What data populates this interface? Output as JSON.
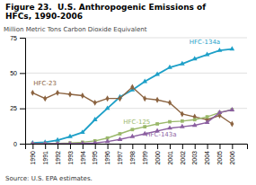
{
  "chart_data": {
    "type": "line",
    "title": [
      "Figure 23.  U.S. Anthropogenic Emissions of",
      "HFCs, 1990-2006"
    ],
    "y_label": "Million Metric Tons Carbon Dioxide Equivalent",
    "source": "Source: U.S. EPA estimates.",
    "x": [
      1990,
      1991,
      1992,
      1993,
      1994,
      1995,
      1996,
      1997,
      1998,
      1999,
      2000,
      2001,
      2002,
      2003,
      2004,
      2005,
      2006
    ],
    "series": [
      {
        "color": "#1ea0c8",
        "marker": "triangle",
        "values": [
          0.5,
          1.0,
          2.5,
          5.0,
          8.0,
          17.0,
          25.0,
          33.0,
          38.0,
          44.0,
          49.0,
          54.0,
          56.5,
          60.0,
          63.0,
          66.0,
          67.0
        ]
      },
      {
        "color": "#8B6340",
        "marker": "diamond",
        "values": [
          36.0,
          32.0,
          36.0,
          35.0,
          34.0,
          29.0,
          32.0,
          32.0,
          40.0,
          32.0,
          31.0,
          29.0,
          21.0,
          19.0,
          17.0,
          20.0,
          14.0
        ]
      },
      {
        "color": "#9ab86a",
        "marker": "square",
        "values": [
          0.0,
          0.0,
          0.2,
          0.5,
          1.0,
          2.0,
          4.0,
          7.0,
          10.0,
          12.0,
          14.0,
          15.5,
          16.0,
          17.0,
          19.0,
          22.0,
          24.0
        ]
      },
      {
        "color": "#8b5fa0",
        "marker": "triangle",
        "values": [
          0.0,
          0.0,
          0.0,
          0.0,
          0.2,
          0.5,
          1.5,
          3.0,
          5.0,
          7.0,
          9.0,
          11.0,
          12.0,
          13.0,
          15.0,
          22.0,
          24.0
        ]
      }
    ],
    "annotations": [
      {
        "text": "HFC-134a",
        "x": 2002.5,
        "y": 70.0,
        "color": "#1ea0c8"
      },
      {
        "text": "HFC-23",
        "x": 1990.0,
        "y": 40.5,
        "color": "#8B6340"
      },
      {
        "text": "HFC-125",
        "x": 1997.2,
        "y": 13.5,
        "color": "#9ab86a"
      },
      {
        "text": "HFC-143a",
        "x": 1999.0,
        "y": 4.5,
        "color": "#8b5fa0"
      }
    ],
    "xlim": [
      1989.4,
      2007.2
    ],
    "xticks": [
      1990,
      1991,
      1992,
      1993,
      1994,
      1995,
      1996,
      1997,
      1998,
      1999,
      2000,
      2001,
      2002,
      2003,
      2004,
      2005,
      2006
    ],
    "ylim": [
      0,
      75
    ],
    "yticks": [
      0,
      25,
      50,
      75
    ],
    "grid": true
  }
}
